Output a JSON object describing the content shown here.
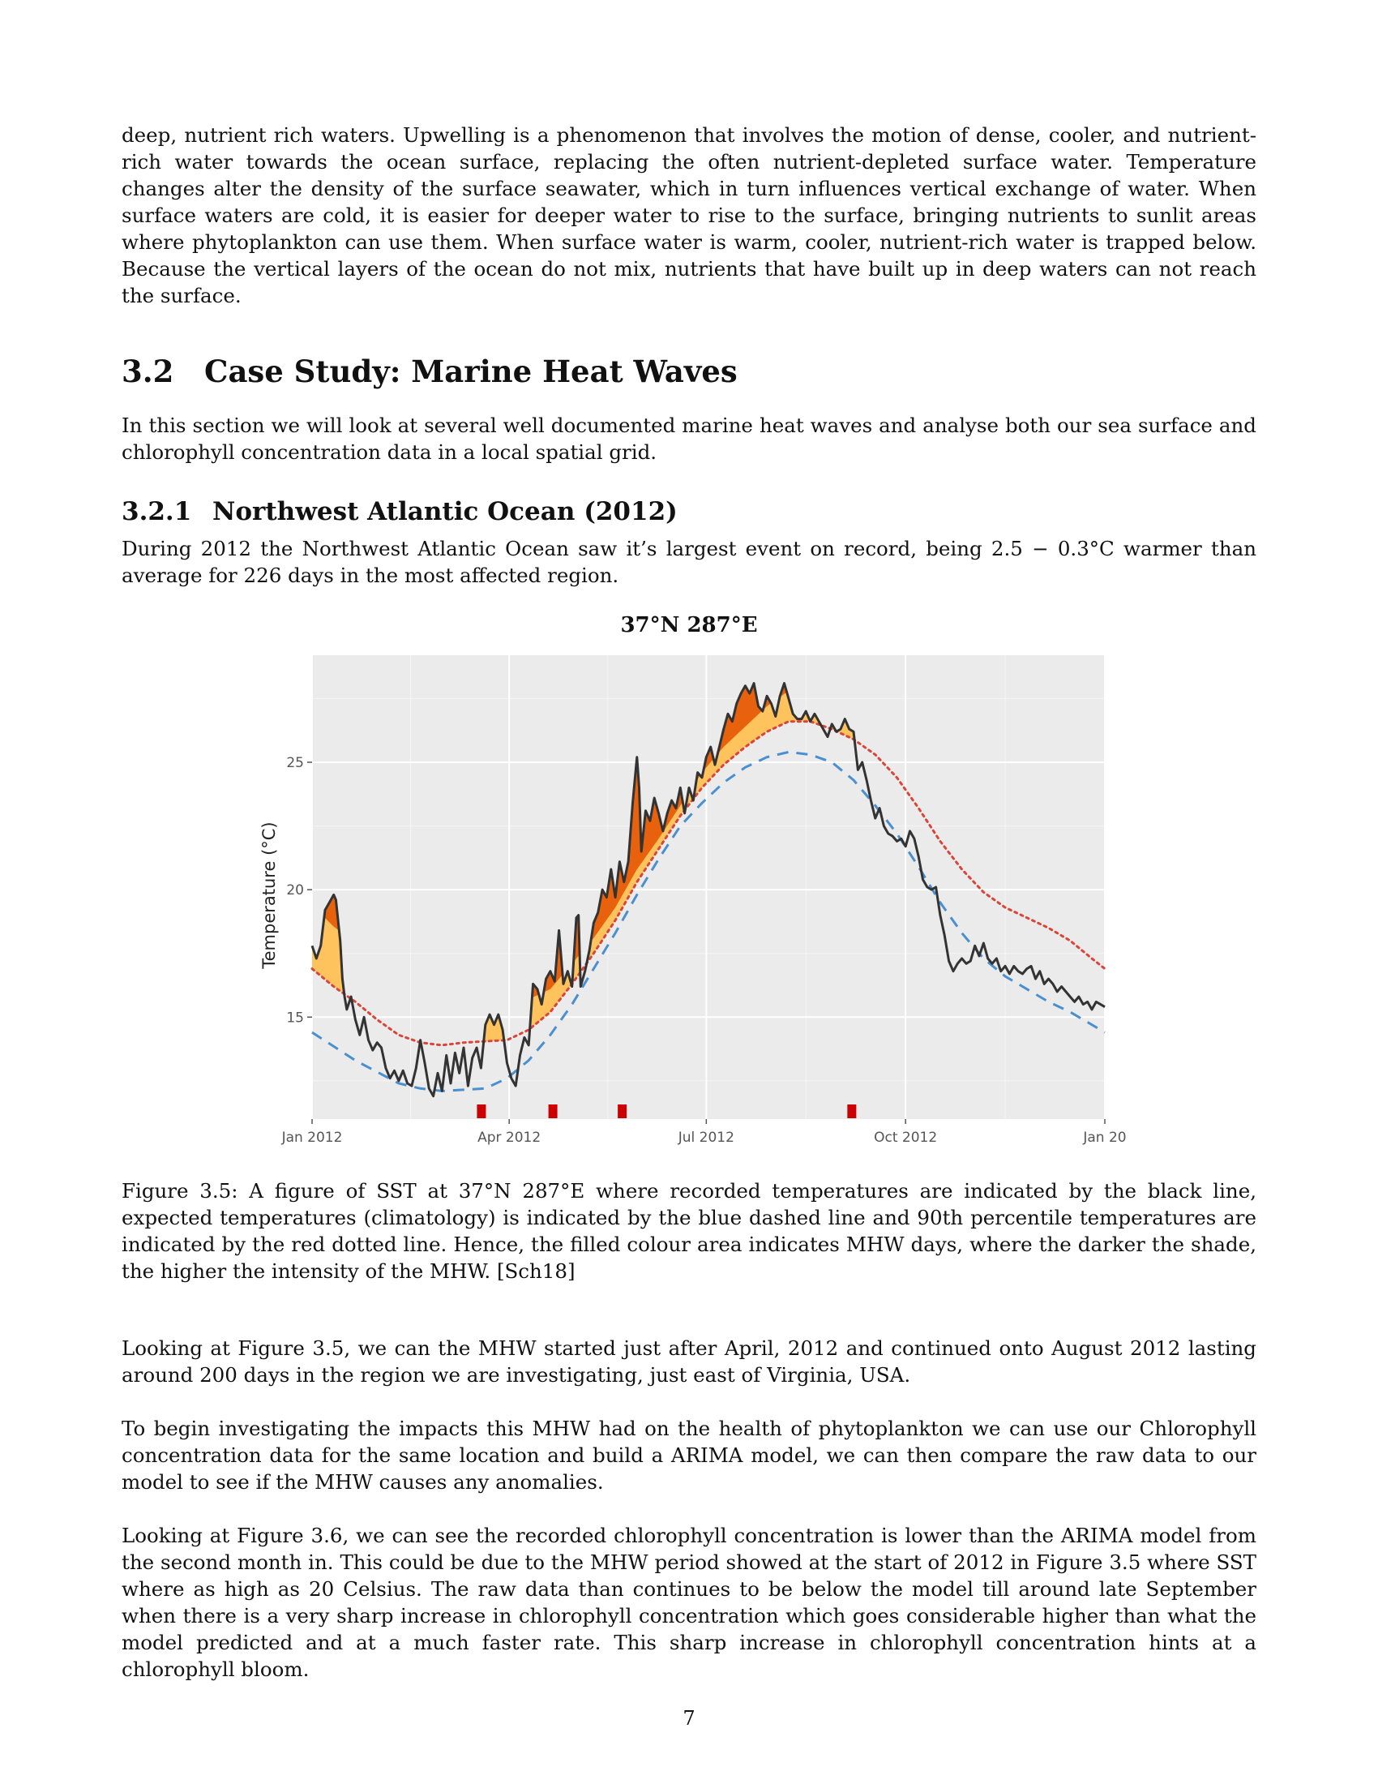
{
  "intro_paragraph": "deep, nutrient rich waters. Upwelling is a phenomenon that involves the motion of dense, cooler, and nutrient-rich water towards the ocean surface, replacing the often nutrient-depleted surface water. Temperature changes alter the density of the surface seawater, which in turn influences vertical exchange of water. When surface waters are cold, it is easier for deeper water to rise to the surface, bringing nutrients to sunlit areas where phytoplankton can use them. When surface water is warm, cooler, nutrient-rich water is trapped below. Because the vertical layers of the ocean do not mix, nutrients that have built up in deep waters can not reach the surface.",
  "section": {
    "number": "3.2",
    "title": "Case Study: Marine Heat Waves"
  },
  "section_paragraph": "In this section we will look at several well documented marine heat waves and analyse both our sea surface and chlorophyll concentration data in a local spatial grid.",
  "subsection": {
    "number": "3.2.1",
    "title": "Northwest Atlantic Ocean (2012)"
  },
  "subsection_paragraph": "During 2012 the Northwest Atlantic Ocean saw it’s largest event on record, being 2.5 − 0.3°C warmer than average for 226 days in the most affected region.",
  "figure": {
    "title": "37°N 287°E",
    "caption": "Figure 3.5: A figure of SST at 37°N 287°E where recorded temperatures are indicated by the black line, expected temperatures (climatology) is indicated by the blue dashed line and 90th percentile temperatures are indicated by the red dotted line. Hence, the filled colour area indicates MHW days, where the darker the shade, the higher the intensity of the MHW. [Sch18]"
  },
  "paragraphs_after": [
    "Looking at Figure 3.5, we can the MHW started just after April, 2012 and continued onto August 2012 lasting around 200 days in the region we are investigating, just east of Virginia, USA.",
    "To begin investigating the impacts this MHW had on the health of phytoplankton we can use our Chlorophyll concentration data for the same location and build a ARIMA model, we can then compare the raw data to our model to see if the MHW causes any anomalies.",
    "Looking at Figure 3.6, we can see the recorded chlorophyll concentration is lower than the ARIMA model from the second month in. This could be due to the MHW period showed at the start of 2012 in Figure 3.5 where SST where as high as 20 Celsius. The raw data than continues to be below the model till around late September when there is a very sharp increase in chlorophyll concentration which goes considerable higher than what the model predicted and at a much faster rate. This sharp increase in chlorophyll concentration hints at a chlorophyll bloom."
  ],
  "page_number": "7",
  "chart_data": {
    "type": "line",
    "xlabel": "",
    "ylabel": "Temperature (°C)",
    "ylim": [
      11,
      29.2
    ],
    "xlim_days": [
      0,
      366
    ],
    "x_ticks": [
      {
        "day": 0,
        "label": "Jan 2012"
      },
      {
        "day": 91,
        "label": "Apr 2012"
      },
      {
        "day": 182,
        "label": "Jul 2012"
      },
      {
        "day": 274,
        "label": "Oct 2012"
      },
      {
        "day": 366,
        "label": "Jan 20"
      }
    ],
    "y_ticks": [
      15,
      20,
      25
    ],
    "grid": true,
    "colors": {
      "background": "#ebebeb",
      "sst": "#333333",
      "climatology": "#4a90d0",
      "threshold": "#d9453a",
      "mhw_fill": "#ffc35e",
      "mhw_strong": "#e8620e",
      "event_bar": "#cc0000"
    },
    "series": [
      {
        "key": "sst",
        "style": "solid",
        "points": [
          [
            0,
            17.8
          ],
          [
            2,
            17.3
          ],
          [
            4,
            17.8
          ],
          [
            6,
            19.2
          ],
          [
            8,
            19.5
          ],
          [
            10,
            19.8
          ],
          [
            11,
            19.6
          ],
          [
            13,
            18.0
          ],
          [
            14,
            16.5
          ],
          [
            15,
            15.8
          ],
          [
            16,
            15.3
          ],
          [
            18,
            15.8
          ],
          [
            20,
            14.9
          ],
          [
            22,
            14.3
          ],
          [
            24,
            15.0
          ],
          [
            26,
            14.1
          ],
          [
            28,
            13.7
          ],
          [
            30,
            14.0
          ],
          [
            32,
            13.8
          ],
          [
            34,
            13.0
          ],
          [
            36,
            12.6
          ],
          [
            38,
            12.9
          ],
          [
            40,
            12.5
          ],
          [
            42,
            12.9
          ],
          [
            44,
            12.4
          ],
          [
            46,
            12.3
          ],
          [
            48,
            13.0
          ],
          [
            50,
            14.1
          ],
          [
            52,
            13.2
          ],
          [
            54,
            12.2
          ],
          [
            56,
            11.9
          ],
          [
            58,
            12.8
          ],
          [
            60,
            12.1
          ],
          [
            62,
            13.5
          ],
          [
            64,
            12.4
          ],
          [
            66,
            13.6
          ],
          [
            68,
            12.8
          ],
          [
            70,
            13.8
          ],
          [
            72,
            12.3
          ],
          [
            74,
            13.4
          ],
          [
            76,
            13.8
          ],
          [
            78,
            13.0
          ],
          [
            80,
            14.7
          ],
          [
            82,
            15.1
          ],
          [
            84,
            14.7
          ],
          [
            86,
            15.1
          ],
          [
            88,
            14.5
          ],
          [
            90,
            13.2
          ],
          [
            92,
            12.6
          ],
          [
            94,
            12.3
          ],
          [
            96,
            13.5
          ],
          [
            98,
            14.2
          ],
          [
            100,
            13.9
          ],
          [
            102,
            16.3
          ],
          [
            104,
            16.1
          ],
          [
            106,
            15.5
          ],
          [
            108,
            16.5
          ],
          [
            110,
            16.8
          ],
          [
            112,
            16.4
          ],
          [
            114,
            18.4
          ],
          [
            116,
            16.3
          ],
          [
            118,
            16.8
          ],
          [
            120,
            16.2
          ],
          [
            122,
            18.9
          ],
          [
            123,
            19.0
          ],
          [
            124,
            16.2
          ],
          [
            126,
            16.8
          ],
          [
            128,
            17.6
          ],
          [
            130,
            18.7
          ],
          [
            132,
            19.1
          ],
          [
            134,
            20.0
          ],
          [
            136,
            19.7
          ],
          [
            138,
            20.8
          ],
          [
            140,
            19.7
          ],
          [
            142,
            21.1
          ],
          [
            144,
            20.3
          ],
          [
            146,
            21.1
          ],
          [
            148,
            23.4
          ],
          [
            150,
            25.2
          ],
          [
            151,
            24.0
          ],
          [
            152,
            21.5
          ],
          [
            154,
            23.1
          ],
          [
            156,
            22.7
          ],
          [
            158,
            23.6
          ],
          [
            160,
            23.0
          ],
          [
            162,
            22.3
          ],
          [
            164,
            23.0
          ],
          [
            166,
            23.5
          ],
          [
            168,
            23.2
          ],
          [
            170,
            24.0
          ],
          [
            172,
            23.0
          ],
          [
            174,
            24.0
          ],
          [
            176,
            23.5
          ],
          [
            178,
            24.6
          ],
          [
            180,
            24.4
          ],
          [
            182,
            25.2
          ],
          [
            184,
            25.6
          ],
          [
            186,
            24.9
          ],
          [
            188,
            25.6
          ],
          [
            190,
            26.3
          ],
          [
            192,
            26.9
          ],
          [
            194,
            26.6
          ],
          [
            196,
            27.3
          ],
          [
            198,
            27.7
          ],
          [
            200,
            28.0
          ],
          [
            202,
            27.7
          ],
          [
            204,
            28.1
          ],
          [
            206,
            27.2
          ],
          [
            208,
            27.0
          ],
          [
            210,
            27.6
          ],
          [
            212,
            27.3
          ],
          [
            214,
            26.8
          ],
          [
            216,
            27.6
          ],
          [
            218,
            28.1
          ],
          [
            220,
            27.5
          ],
          [
            222,
            26.9
          ],
          [
            224,
            26.7
          ],
          [
            226,
            26.7
          ],
          [
            228,
            27.0
          ],
          [
            230,
            26.6
          ],
          [
            232,
            26.9
          ],
          [
            234,
            26.6
          ],
          [
            236,
            26.3
          ],
          [
            238,
            26.0
          ],
          [
            240,
            26.5
          ],
          [
            242,
            26.2
          ],
          [
            244,
            26.3
          ],
          [
            246,
            26.7
          ],
          [
            248,
            26.3
          ],
          [
            250,
            26.2
          ],
          [
            252,
            24.7
          ],
          [
            254,
            25.0
          ],
          [
            256,
            24.3
          ],
          [
            258,
            23.5
          ],
          [
            260,
            22.8
          ],
          [
            262,
            23.2
          ],
          [
            264,
            22.5
          ],
          [
            266,
            22.2
          ],
          [
            268,
            22.1
          ],
          [
            270,
            21.9
          ],
          [
            272,
            22.0
          ],
          [
            274,
            21.7
          ],
          [
            276,
            22.3
          ],
          [
            278,
            22.0
          ],
          [
            280,
            21.3
          ],
          [
            282,
            20.4
          ],
          [
            284,
            20.1
          ],
          [
            286,
            20.0
          ],
          [
            288,
            20.1
          ],
          [
            290,
            19.0
          ],
          [
            292,
            18.2
          ],
          [
            294,
            17.2
          ],
          [
            296,
            16.8
          ],
          [
            298,
            17.1
          ],
          [
            300,
            17.3
          ],
          [
            302,
            17.1
          ],
          [
            304,
            17.2
          ],
          [
            306,
            17.8
          ],
          [
            308,
            17.4
          ],
          [
            310,
            17.9
          ],
          [
            312,
            17.3
          ],
          [
            314,
            17.1
          ],
          [
            316,
            17.3
          ],
          [
            318,
            16.8
          ],
          [
            320,
            17.0
          ],
          [
            322,
            16.7
          ],
          [
            324,
            17.0
          ],
          [
            326,
            16.8
          ],
          [
            328,
            16.7
          ],
          [
            330,
            16.9
          ],
          [
            332,
            17.0
          ],
          [
            334,
            16.5
          ],
          [
            336,
            16.8
          ],
          [
            338,
            16.3
          ],
          [
            340,
            16.5
          ],
          [
            342,
            16.3
          ],
          [
            344,
            16.0
          ],
          [
            346,
            16.2
          ],
          [
            348,
            16.0
          ],
          [
            350,
            15.8
          ],
          [
            352,
            15.6
          ],
          [
            354,
            15.8
          ],
          [
            356,
            15.5
          ],
          [
            358,
            15.6
          ],
          [
            360,
            15.3
          ],
          [
            362,
            15.6
          ],
          [
            364,
            15.5
          ],
          [
            366,
            15.4
          ]
        ]
      },
      {
        "key": "climatology",
        "style": "dashed",
        "points": [
          [
            0,
            14.4
          ],
          [
            20,
            13.3
          ],
          [
            40,
            12.4
          ],
          [
            50,
            12.2
          ],
          [
            60,
            12.1
          ],
          [
            70,
            12.15
          ],
          [
            80,
            12.2
          ],
          [
            90,
            12.6
          ],
          [
            100,
            13.3
          ],
          [
            110,
            14.3
          ],
          [
            120,
            15.5
          ],
          [
            130,
            16.9
          ],
          [
            140,
            18.3
          ],
          [
            150,
            19.8
          ],
          [
            160,
            21.2
          ],
          [
            170,
            22.5
          ],
          [
            180,
            23.4
          ],
          [
            190,
            24.2
          ],
          [
            200,
            24.8
          ],
          [
            210,
            25.2
          ],
          [
            220,
            25.4
          ],
          [
            230,
            25.3
          ],
          [
            240,
            25.0
          ],
          [
            250,
            24.3
          ],
          [
            260,
            23.3
          ],
          [
            270,
            22.2
          ],
          [
            280,
            20.9
          ],
          [
            290,
            19.5
          ],
          [
            300,
            18.3
          ],
          [
            310,
            17.3
          ],
          [
            320,
            16.6
          ],
          [
            330,
            16.1
          ],
          [
            340,
            15.6
          ],
          [
            350,
            15.2
          ],
          [
            360,
            14.7
          ],
          [
            366,
            14.4
          ]
        ]
      },
      {
        "key": "threshold",
        "style": "dotted",
        "points": [
          [
            0,
            16.9
          ],
          [
            10,
            16.2
          ],
          [
            20,
            15.6
          ],
          [
            30,
            14.9
          ],
          [
            40,
            14.3
          ],
          [
            50,
            14.0
          ],
          [
            60,
            13.9
          ],
          [
            70,
            14.0
          ],
          [
            80,
            14.05
          ],
          [
            90,
            14.1
          ],
          [
            100,
            14.5
          ],
          [
            110,
            15.2
          ],
          [
            120,
            16.3
          ],
          [
            130,
            17.5
          ],
          [
            140,
            18.8
          ],
          [
            150,
            20.3
          ],
          [
            160,
            21.6
          ],
          [
            170,
            22.9
          ],
          [
            180,
            24.0
          ],
          [
            190,
            24.9
          ],
          [
            200,
            25.6
          ],
          [
            210,
            26.2
          ],
          [
            220,
            26.6
          ],
          [
            230,
            26.6
          ],
          [
            240,
            26.3
          ],
          [
            250,
            25.9
          ],
          [
            260,
            25.3
          ],
          [
            270,
            24.4
          ],
          [
            280,
            23.2
          ],
          [
            290,
            21.9
          ],
          [
            300,
            20.8
          ],
          [
            310,
            19.9
          ],
          [
            320,
            19.3
          ],
          [
            330,
            18.9
          ],
          [
            340,
            18.5
          ],
          [
            350,
            18.0
          ],
          [
            360,
            17.3
          ],
          [
            366,
            16.9
          ]
        ]
      }
    ],
    "event_markers": [
      78,
      111,
      143,
      249
    ]
  }
}
